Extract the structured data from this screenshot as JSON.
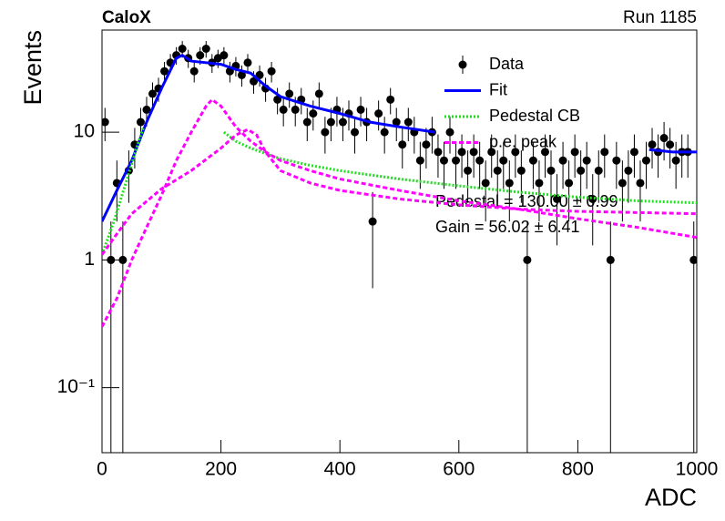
{
  "chart_data": {
    "type": "scatter",
    "title": "CaloX",
    "subtitle": "Run 1185",
    "x_label": "ADC",
    "y_label": "Events",
    "log_y": true,
    "legend": "upper right",
    "xlim": [
      0,
      1000
    ],
    "xticks": [
      0,
      200,
      400,
      600,
      800,
      1000
    ],
    "ylim": [
      0.031,
      63
    ],
    "yticks": [
      {
        "value": 0.1,
        "label": "10⁻¹"
      },
      1,
      10
    ],
    "annotations": [
      "Pedestal = 130.00 ± 0.99",
      "Gain = 56.02 ± 6.41"
    ],
    "series": [
      {
        "name": "Data",
        "type": "scatter",
        "color": "#000000",
        "x": [
          5,
          15,
          25,
          35,
          45,
          55,
          65,
          75,
          85,
          95,
          105,
          115,
          125,
          135,
          145,
          155,
          165,
          175,
          185,
          195,
          205,
          215,
          225,
          235,
          245,
          255,
          265,
          275,
          285,
          295,
          305,
          315,
          325,
          335,
          345,
          355,
          365,
          375,
          385,
          395,
          405,
          415,
          425,
          435,
          445,
          455,
          465,
          475,
          485,
          495,
          505,
          515,
          525,
          535,
          545,
          555,
          565,
          575,
          585,
          595,
          605,
          615,
          625,
          635,
          645,
          655,
          665,
          675,
          685,
          695,
          705,
          715,
          725,
          735,
          745,
          755,
          765,
          775,
          785,
          795,
          805,
          815,
          825,
          835,
          845,
          855,
          865,
          875,
          885,
          895,
          905,
          915,
          925,
          935,
          945,
          955,
          965,
          975,
          985,
          995
        ],
        "values": [
          12,
          1,
          4,
          1,
          5,
          8,
          12,
          15,
          20,
          22,
          30,
          35,
          40,
          45,
          38,
          30,
          40,
          45,
          35,
          38,
          40,
          30,
          33,
          28,
          35,
          25,
          28,
          22,
          30,
          18,
          15,
          20,
          15,
          18,
          12,
          14,
          20,
          10,
          12,
          15,
          12,
          14,
          10,
          15,
          12,
          2,
          14,
          10,
          18,
          12,
          8,
          12,
          10,
          6,
          8,
          10,
          7,
          6,
          10,
          6,
          7,
          5,
          7,
          6,
          4,
          7,
          5,
          6,
          4,
          7,
          5,
          1,
          6,
          4,
          7,
          5,
          3,
          6,
          4,
          7,
          5,
          6,
          3,
          5,
          7,
          1,
          6,
          4,
          5,
          7,
          4,
          6,
          8,
          7,
          9,
          8,
          6,
          7,
          7,
          1
        ],
        "errors": [
          3.5,
          1,
          2,
          1,
          2.2,
          2.8,
          3.5,
          3.9,
          4.5,
          4.7,
          5.5,
          5.9,
          6.3,
          6.7,
          6.2,
          5.5,
          6.3,
          6.7,
          5.9,
          6.2,
          6.3,
          5.5,
          5.7,
          5.3,
          5.9,
          5,
          5.3,
          4.7,
          5.5,
          4.2,
          3.9,
          4.5,
          3.9,
          4.2,
          3.5,
          3.7,
          4.5,
          3.2,
          3.5,
          3.9,
          3.5,
          3.7,
          3.2,
          3.9,
          3.5,
          1.4,
          3.7,
          3.2,
          4.2,
          3.5,
          2.8,
          3.5,
          3.2,
          2.4,
          2.8,
          3.2,
          2.6,
          2.4,
          3.2,
          2.4,
          2.6,
          2.2,
          2.6,
          2.4,
          2,
          2.6,
          2.2,
          2.4,
          2,
          2.6,
          2.2,
          1,
          2.4,
          2,
          2.6,
          2.2,
          1.7,
          2.4,
          2,
          2.6,
          2.2,
          2.4,
          1.7,
          2.2,
          2.6,
          1,
          2.4,
          2,
          2.2,
          2.6,
          2,
          2.4,
          2.8,
          2.6,
          3,
          2.8,
          2.4,
          2.6,
          2.6,
          1
        ]
      },
      {
        "name": "Fit",
        "type": "line",
        "color": "#0000ff",
        "style": "solid",
        "x": [
          0,
          25,
          50,
          75,
          100,
          125,
          135,
          150,
          175,
          200,
          225,
          250,
          275,
          300,
          350,
          400,
          450,
          500,
          560,
          570,
          920,
          960,
          1000
        ],
        "values": [
          2,
          3.5,
          6,
          12,
          22,
          38,
          40,
          36,
          35,
          34,
          31,
          29,
          23,
          19,
          16,
          14,
          12,
          11,
          10,
          null,
          7.3,
          7,
          7
        ]
      },
      {
        "name": "Pedestal CB",
        "type": "line",
        "color": "#22dd22",
        "style": "dotted",
        "x": [
          0,
          20,
          40,
          60,
          70,
          80,
          205,
          225,
          250,
          275,
          300,
          350,
          400,
          500,
          600,
          700,
          800,
          900,
          1000
        ],
        "values": [
          1.1,
          2,
          4,
          8,
          11,
          null,
          10,
          8.5,
          7.5,
          6.8,
          6.2,
          5.5,
          5,
          4.3,
          3.8,
          3.4,
          3.1,
          2.9,
          2.8
        ]
      },
      {
        "name": "p.e. peak",
        "type": "line",
        "color": "#ff00ff",
        "style": "dashed",
        "x": [
          0,
          25,
          50,
          75,
          100,
          125,
          150,
          175,
          185,
          200,
          225,
          250,
          275,
          300,
          350,
          400,
          500,
          600,
          700,
          800,
          900,
          1000
        ],
        "values": [
          0.3,
          0.5,
          1,
          1.8,
          3.2,
          6,
          10,
          16,
          18,
          16,
          11,
          8.5,
          7,
          6,
          5,
          4.3,
          3.5,
          2.9,
          2.5,
          2.1,
          1.8,
          1.5
        ]
      },
      {
        "type": "line",
        "color": "#ff00ff",
        "style": "dashed",
        "x": [
          0,
          25,
          50,
          100,
          150,
          200,
          225,
          245,
          260,
          275,
          300,
          350,
          400,
          500,
          600,
          700,
          800,
          900,
          1000
        ],
        "values": [
          1.1,
          1.6,
          2.3,
          3.6,
          5,
          7.5,
          9.5,
          10.5,
          9.5,
          7,
          5,
          4,
          3.5,
          3,
          2.7,
          2.5,
          2.4,
          2.35,
          2.3
        ]
      }
    ]
  }
}
